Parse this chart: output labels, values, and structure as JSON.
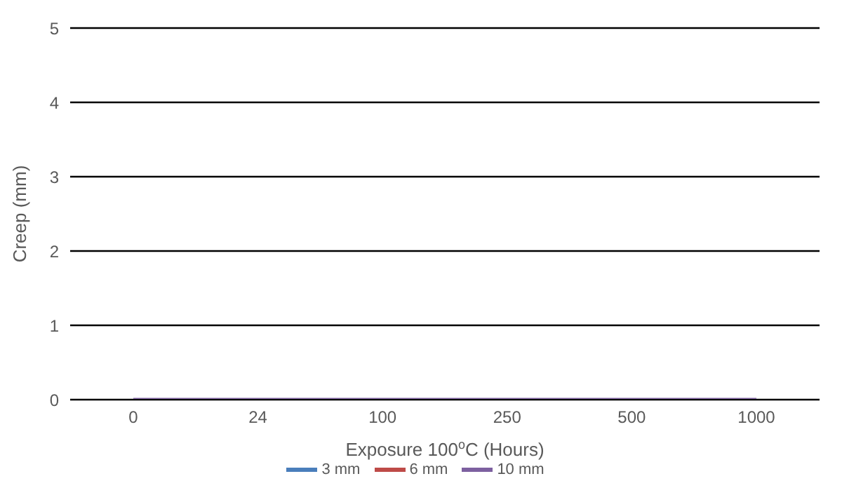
{
  "chart_data": {
    "type": "line",
    "xlabel": "Exposure 100$^{o}$C (Hours)",
    "ylabel": "Creep (mm)",
    "categories": [
      "0",
      "24",
      "100",
      "250",
      "500",
      "1000"
    ],
    "series": [
      {
        "name": "3 mm",
        "color": "#4a7ebb",
        "values": [
          null,
          null,
          null,
          null,
          null,
          null
        ]
      },
      {
        "name": "6 mm",
        "color": "#be4b48",
        "values": [
          null,
          null,
          null,
          null,
          null,
          null
        ]
      },
      {
        "name": "10 mm",
        "color": "#7d60a0",
        "values": [
          0,
          0,
          0,
          0,
          0,
          0
        ]
      }
    ],
    "ylim": [
      0,
      5
    ],
    "yticks": [
      0,
      1,
      2,
      3,
      4,
      5
    ],
    "grid": "y",
    "legend": "bottom",
    "marker": "none",
    "line_style": "solid"
  }
}
